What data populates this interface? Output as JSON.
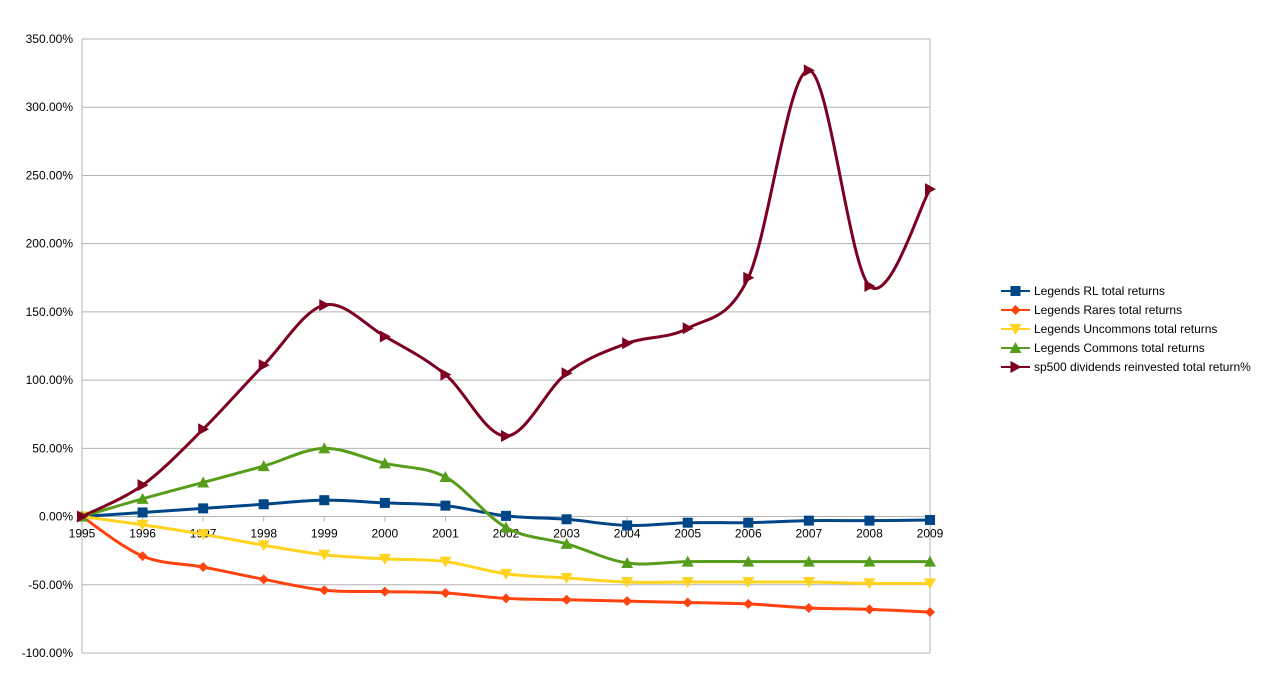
{
  "chart_data": {
    "type": "line",
    "title": "",
    "xlabel": "",
    "ylabel": "",
    "x": [
      "1995",
      "1996",
      "1997",
      "1998",
      "1999",
      "2000",
      "2001",
      "2002",
      "2003",
      "2004",
      "2005",
      "2006",
      "2007",
      "2008",
      "2009"
    ],
    "ylim": [
      -100,
      350
    ],
    "yticks": [
      -100,
      -50,
      0,
      50,
      100,
      150,
      200,
      250,
      300,
      350
    ],
    "ytick_labels": [
      "-100.00%",
      "-50.00%",
      "0.00%",
      "50.00%",
      "100.00%",
      "150.00%",
      "200.00%",
      "250.00%",
      "300.00%",
      "350.00%"
    ],
    "grid": "horizontal",
    "legend_position": "right",
    "smooth": true,
    "series": [
      {
        "name": "Legends RL total returns",
        "color": "#004586",
        "marker": "square",
        "values": [
          0,
          3,
          6,
          9,
          12,
          10,
          8,
          0.5,
          -2,
          -6.5,
          -4.5,
          -4.5,
          -3,
          -3,
          -2.5
        ]
      },
      {
        "name": "Legends Rares total returns",
        "color": "#ff420e",
        "marker": "diamond",
        "values": [
          0,
          -29,
          -37,
          -46,
          -54,
          -55,
          -56,
          -60,
          -61,
          -62,
          -63,
          -64,
          -67,
          -68,
          -70
        ]
      },
      {
        "name": "Legends Uncommons total returns",
        "color": "#ffd320",
        "marker": "triangle-down",
        "values": [
          0,
          -6,
          -13,
          -21,
          -28,
          -31,
          -33,
          -42,
          -45,
          -48,
          -48,
          -48,
          -48,
          -49,
          -49
        ]
      },
      {
        "name": "Legends Commons total returns",
        "color": "#579d1c",
        "marker": "triangle-up",
        "values": [
          0,
          13,
          25,
          37,
          50,
          39,
          29,
          -8,
          -20,
          -34,
          -33,
          -33,
          -33,
          -33,
          -33
        ]
      },
      {
        "name": "sp500 dividends reinvested total return%",
        "color": "#7e0021",
        "marker": "triangle-right",
        "values": [
          0,
          23,
          64,
          111,
          155,
          132,
          104,
          59,
          105,
          127,
          138,
          175,
          327,
          169,
          240
        ]
      }
    ]
  }
}
